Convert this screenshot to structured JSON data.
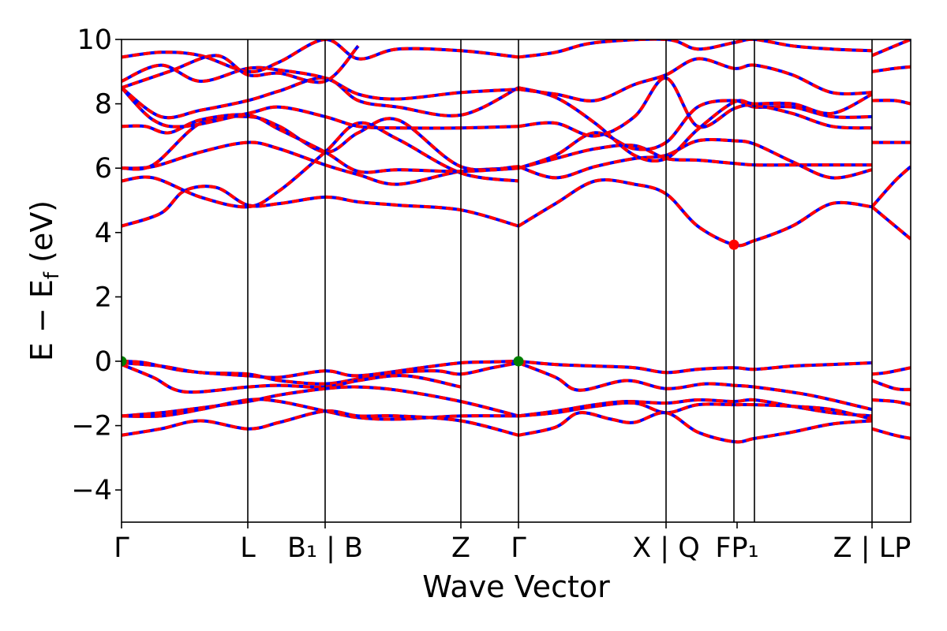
{
  "chart_data": {
    "type": "line",
    "title": "",
    "xlabel": "Wave Vector",
    "ylabel_parts": {
      "main": "E − E",
      "sub": "f",
      "unit": " (eV)"
    },
    "ylim": [
      -5,
      10
    ],
    "yticks": [
      -4,
      -2,
      0,
      2,
      4,
      6,
      8,
      10
    ],
    "ytick_labels": [
      "−4",
      "−2",
      "0",
      "2",
      "4",
      "6",
      "8",
      "10"
    ],
    "kpath": [
      {
        "label": "Γ",
        "x": 0.0
      },
      {
        "label": "L",
        "x": 0.16
      },
      {
        "label": "B1 | B",
        "x": 0.258
      },
      {
        "label": "Z",
        "x": 0.43
      },
      {
        "label": "Γ",
        "x": 0.503
      },
      {
        "label": "X | Q",
        "x": 0.69
      },
      {
        "label": "FP1",
        "x": 0.776
      },
      {
        "label": "",
        "x": 0.802
      },
      {
        "label": "Z | LP",
        "x": 0.951
      },
      {
        "label": "",
        "x": 1.0
      }
    ],
    "xticks": [
      {
        "x": 0.0,
        "text": "Γ"
      },
      {
        "x": 0.16,
        "text": "L"
      },
      {
        "x": 0.258,
        "text": "B₁ | B"
      },
      {
        "x": 0.43,
        "text": "Z"
      },
      {
        "x": 0.503,
        "text": "Γ"
      },
      {
        "x": 0.69,
        "text": "X | Q"
      },
      {
        "x": 0.78,
        "text": "FP₁"
      },
      {
        "x": 0.951,
        "text": "Z | LP"
      }
    ],
    "styles": {
      "band_color": "#ff0000",
      "overlay_color": "#0000ff",
      "vbm_color": "#008000",
      "cbm_color": "#ff0000"
    },
    "markers": [
      {
        "name": "VBM",
        "x": 0.0,
        "y": 0.0
      },
      {
        "name": "VBM",
        "x": 0.503,
        "y": 0.0
      },
      {
        "name": "CBM",
        "x": 0.776,
        "y": 3.62
      }
    ],
    "series": [
      {
        "x": [
          0,
          0.03,
          0.08,
          0.16,
          0.2,
          0.258,
          0.3,
          0.38,
          0.43,
          0.47,
          0.503
        ],
        "y": [
          0,
          -0.05,
          -0.3,
          -0.45,
          -0.5,
          -0.3,
          -0.45,
          -0.2,
          -0.05,
          -0.02,
          0
        ]
      },
      {
        "x": [
          0.503,
          0.55,
          0.6,
          0.65,
          0.69,
          0.73,
          0.776,
          0.802,
          0.85,
          0.9,
          0.951
        ],
        "y": [
          0,
          -0.1,
          -0.15,
          -0.2,
          -0.35,
          -0.25,
          -0.2,
          -0.25,
          -0.15,
          -0.1,
          -0.05
        ]
      },
      {
        "x": [
          0.951,
          0.97,
          1.0
        ],
        "y": [
          -0.4,
          -0.35,
          -0.2
        ]
      },
      {
        "x": [
          0,
          0.05,
          0.1,
          0.16,
          0.2,
          0.258,
          0.3,
          0.35,
          0.4,
          0.43,
          0.47,
          0.503
        ],
        "y": [
          -0.05,
          -0.15,
          -0.35,
          -0.4,
          -0.6,
          -0.7,
          -0.55,
          -0.35,
          -0.3,
          -0.4,
          -0.2,
          -0.05
        ]
      },
      {
        "x": [
          0,
          0.04,
          0.08,
          0.16,
          0.2,
          0.258,
          0.3,
          0.36,
          0.43
        ],
        "y": [
          -0.1,
          -0.5,
          -0.95,
          -0.8,
          -0.75,
          -0.8,
          -0.6,
          -0.45,
          -0.8
        ]
      },
      {
        "x": [
          0.503,
          0.55,
          0.58,
          0.64,
          0.69,
          0.74,
          0.776,
          0.802,
          0.86,
          0.9,
          0.951
        ],
        "y": [
          -0.05,
          -0.5,
          -0.9,
          -0.6,
          -0.85,
          -0.7,
          -0.75,
          -0.8,
          -1.0,
          -1.2,
          -1.5
        ]
      },
      {
        "x": [
          0.951,
          0.98,
          1.0
        ],
        "y": [
          -0.6,
          -0.85,
          -0.88
        ]
      },
      {
        "x": [
          0,
          0.05,
          0.1,
          0.16,
          0.2,
          0.258,
          0.3,
          0.35,
          0.43,
          0.503
        ],
        "y": [
          -1.7,
          -1.6,
          -1.45,
          -1.25,
          -1.05,
          -0.85,
          -0.8,
          -0.9,
          -1.25,
          -1.7
        ]
      },
      {
        "x": [
          0.503,
          0.55,
          0.6,
          0.64,
          0.69,
          0.73,
          0.776,
          0.802,
          0.85,
          0.9,
          0.951
        ],
        "y": [
          -1.7,
          -1.55,
          -1.35,
          -1.25,
          -1.3,
          -1.2,
          -1.25,
          -1.2,
          -1.4,
          -1.6,
          -1.7
        ]
      },
      {
        "x": [
          0.951,
          0.98,
          1.0
        ],
        "y": [
          -1.2,
          -1.25,
          -1.35
        ]
      },
      {
        "x": [
          0,
          0.05,
          0.1,
          0.16,
          0.2,
          0.258,
          0.3,
          0.35,
          0.43,
          0.503
        ],
        "y": [
          -1.7,
          -1.7,
          -1.5,
          -1.2,
          -1.25,
          -1.55,
          -1.75,
          -1.8,
          -1.7,
          -1.7
        ]
      },
      {
        "x": [
          0.503,
          0.55,
          0.6,
          0.65,
          0.69,
          0.73,
          0.776,
          0.802,
          0.85,
          0.9,
          0.951
        ],
        "y": [
          -1.7,
          -1.6,
          -1.4,
          -1.3,
          -1.6,
          -1.35,
          -1.35,
          -1.35,
          -1.4,
          -1.5,
          -1.8
        ]
      },
      {
        "x": [
          0,
          0.05,
          0.1,
          0.16,
          0.2,
          0.258,
          0.3,
          0.35,
          0.43,
          0.503
        ],
        "y": [
          -2.3,
          -2.1,
          -1.85,
          -2.1,
          -1.9,
          -1.55,
          -1.7,
          -1.7,
          -1.85,
          -2.3
        ]
      },
      {
        "x": [
          0.503,
          0.55,
          0.58,
          0.62,
          0.65,
          0.69,
          0.73,
          0.776,
          0.802,
          0.85,
          0.9,
          0.951
        ],
        "y": [
          -2.3,
          -2.05,
          -1.6,
          -1.8,
          -1.9,
          -1.6,
          -2.2,
          -2.5,
          -2.4,
          -2.2,
          -1.95,
          -1.85
        ]
      },
      {
        "x": [
          0.951,
          0.98,
          1.0
        ],
        "y": [
          -2.1,
          -2.3,
          -2.4
        ]
      },
      {
        "x": [
          0,
          0.05,
          0.08,
          0.12,
          0.16,
          0.2,
          0.258,
          0.3,
          0.35,
          0.43,
          0.503
        ],
        "y": [
          4.2,
          4.6,
          5.3,
          5.4,
          4.85,
          4.9,
          5.1,
          4.95,
          4.85,
          4.7,
          4.2
        ]
      },
      {
        "x": [
          0.503,
          0.55,
          0.6,
          0.65,
          0.69,
          0.73,
          0.776,
          0.802,
          0.85,
          0.9,
          0.951
        ],
        "y": [
          4.2,
          4.9,
          5.6,
          5.5,
          5.2,
          4.2,
          3.62,
          3.75,
          4.2,
          4.9,
          4.8
        ]
      },
      {
        "x": [
          0.951,
          0.98,
          1.0
        ],
        "y": [
          4.8,
          5.6,
          6.05
        ]
      },
      {
        "x": [
          0,
          0.04,
          0.1,
          0.16,
          0.2,
          0.258,
          0.3,
          0.35,
          0.43,
          0.503
        ],
        "y": [
          5.6,
          5.7,
          5.1,
          4.8,
          5.3,
          6.5,
          7.4,
          6.9,
          5.85,
          5.6
        ]
      },
      {
        "x": [
          0.951,
          1.0
        ],
        "y": [
          4.8,
          3.8
        ]
      },
      {
        "x": [
          0,
          0.04,
          0.1,
          0.16,
          0.2,
          0.258,
          0.3,
          0.35,
          0.43,
          0.503
        ],
        "y": [
          6.0,
          6.05,
          6.5,
          6.8,
          6.6,
          6.1,
          5.8,
          5.5,
          5.9,
          6.0
        ]
      },
      {
        "x": [
          0.503,
          0.55,
          0.6,
          0.65,
          0.69,
          0.73,
          0.776,
          0.802,
          0.85,
          0.9,
          0.951
        ],
        "y": [
          6.0,
          6.3,
          6.6,
          6.7,
          6.3,
          6.25,
          6.15,
          6.1,
          6.1,
          6.1,
          6.1
        ]
      },
      {
        "x": [
          0.951,
          0.98,
          1.0
        ],
        "y": [
          6.8,
          6.8,
          6.8
        ]
      },
      {
        "x": [
          0,
          0.04,
          0.1,
          0.16,
          0.2,
          0.258,
          0.3,
          0.35,
          0.43,
          0.503
        ],
        "y": [
          6.0,
          6.1,
          7.4,
          7.6,
          7.3,
          6.5,
          7.1,
          7.5,
          6.05,
          6.05
        ]
      },
      {
        "x": [
          0.503,
          0.55,
          0.6,
          0.65,
          0.69,
          0.73,
          0.776,
          0.802,
          0.85,
          0.9,
          0.951
        ],
        "y": [
          6.05,
          5.7,
          6.05,
          6.3,
          6.4,
          6.85,
          6.85,
          6.75,
          6.2,
          5.7,
          5.95
        ]
      },
      {
        "x": [
          0,
          0.03,
          0.06,
          0.1,
          0.16,
          0.2,
          0.258,
          0.3,
          0.35,
          0.43,
          0.503
        ],
        "y": [
          7.3,
          7.3,
          7.1,
          7.5,
          7.65,
          7.2,
          6.5,
          5.9,
          5.95,
          5.9,
          6.0
        ]
      },
      {
        "x": [
          0.503,
          0.55,
          0.6,
          0.65,
          0.69,
          0.73,
          0.776,
          0.802,
          0.85,
          0.9,
          0.951
        ],
        "y": [
          6.0,
          6.4,
          7.1,
          6.6,
          6.8,
          7.9,
          8.1,
          7.9,
          7.9,
          7.6,
          7.6
        ]
      },
      {
        "x": [
          0,
          0.04,
          0.08,
          0.16,
          0.2,
          0.258,
          0.3,
          0.35,
          0.43,
          0.503
        ],
        "y": [
          8.5,
          7.5,
          7.3,
          7.7,
          7.9,
          7.6,
          7.3,
          7.25,
          7.25,
          7.3
        ]
      },
      {
        "x": [
          0.503,
          0.55,
          0.6,
          0.65,
          0.69,
          0.73,
          0.776,
          0.802,
          0.85,
          0.9,
          0.951
        ],
        "y": [
          7.3,
          7.4,
          7.0,
          7.6,
          8.8,
          7.3,
          7.85,
          7.95,
          7.7,
          7.3,
          7.25
        ]
      },
      {
        "x": [
          0,
          0.05,
          0.1,
          0.16,
          0.2,
          0.258,
          0.3,
          0.35,
          0.43,
          0.503
        ],
        "y": [
          8.5,
          7.6,
          7.8,
          8.1,
          8.4,
          8.8,
          8.1,
          7.9,
          7.65,
          8.5
        ]
      },
      {
        "x": [
          0.503,
          0.55,
          0.6,
          0.65,
          0.69,
          0.73,
          0.776,
          0.802,
          0.85,
          0.9,
          0.951
        ],
        "y": [
          8.5,
          8.2,
          7.4,
          6.4,
          6.3,
          7.2,
          8.05,
          8.0,
          8.0,
          7.7,
          8.3
        ]
      },
      {
        "x": [
          0.951,
          0.98,
          1.0
        ],
        "y": [
          8.1,
          8.1,
          8.0
        ]
      },
      {
        "x": [
          0,
          0.05,
          0.1,
          0.16,
          0.2,
          0.258,
          0.3,
          0.35,
          0.43,
          0.503
        ],
        "y": [
          8.7,
          9.2,
          8.7,
          9.1,
          9.05,
          8.8,
          8.3,
          8.15,
          8.35,
          8.45
        ]
      },
      {
        "x": [
          0.503,
          0.55,
          0.6,
          0.65,
          0.69,
          0.73,
          0.776,
          0.802,
          0.85,
          0.9,
          0.951
        ],
        "y": [
          8.45,
          8.3,
          8.1,
          8.6,
          8.9,
          9.4,
          9.1,
          9.2,
          8.9,
          8.35,
          8.35
        ]
      },
      {
        "x": [
          0.951,
          0.98,
          1.0
        ],
        "y": [
          9.0,
          9.1,
          9.15
        ]
      },
      {
        "x": [
          0,
          0.05,
          0.1,
          0.16,
          0.2,
          0.258,
          0.3,
          0.35,
          0.43,
          0.503
        ],
        "y": [
          9.45,
          9.6,
          9.5,
          9.0,
          9.3,
          10.0,
          9.4,
          9.7,
          9.65,
          9.45
        ]
      },
      {
        "x": [
          0.503,
          0.55,
          0.6,
          0.69,
          0.73,
          0.776,
          0.802,
          0.85,
          0.9,
          0.951
        ],
        "y": [
          9.45,
          9.6,
          9.9,
          10.0,
          9.7,
          9.9,
          10.0,
          9.8,
          9.7,
          9.65
        ]
      },
      {
        "x": [
          0.951,
          0.98,
          1.0
        ],
        "y": [
          9.5,
          9.8,
          10.0
        ]
      },
      {
        "x": [
          0,
          0.06,
          0.12,
          0.16,
          0.2,
          0.258,
          0.3
        ],
        "y": [
          8.5,
          9.0,
          9.5,
          8.9,
          8.95,
          8.7,
          9.8
        ]
      }
    ]
  }
}
